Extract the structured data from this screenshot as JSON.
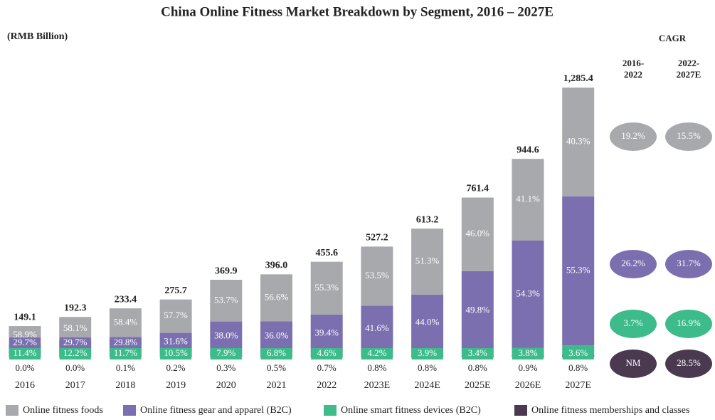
{
  "chart_data": {
    "type": "stacked-bar",
    "title": "China Online Fitness Market Breakdown by Segment, 2016 – 2027E",
    "unit_label": "(RMB Billion)",
    "categories": [
      "2016",
      "2017",
      "2018",
      "2019",
      "2020",
      "2021",
      "2022",
      "2023E",
      "2024E",
      "2025E",
      "2026E",
      "2027E"
    ],
    "totals": {
      "values": [
        149.1,
        192.3,
        233.4,
        275.7,
        369.9,
        396.0,
        455.6,
        527.2,
        613.2,
        761.4,
        944.6,
        1285.4
      ],
      "value_labels": [
        "149.1",
        "192.3",
        "233.4",
        "275.7",
        "369.9",
        "396.0",
        "455.6",
        "527.2",
        "613.2",
        "761.4",
        "944.6",
        "1,285.4"
      ]
    },
    "series": [
      {
        "name": "Online fitness foods",
        "color": "#a7a9ac",
        "values": [
          58.9,
          58.1,
          58.4,
          57.7,
          53.7,
          56.6,
          55.3,
          53.5,
          51.3,
          46.0,
          41.1,
          40.3
        ],
        "value_labels": [
          "58.9%",
          "58.1%",
          "58.4%",
          "57.7%",
          "53.7%",
          "56.6%",
          "55.3%",
          "53.5%",
          "51.3%",
          "46.0%",
          "41.1%",
          "40.3%"
        ]
      },
      {
        "name": "Online fitness gear and apparel (B2C)",
        "color": "#7b6fb0",
        "values": [
          29.7,
          29.7,
          29.8,
          31.6,
          38.0,
          36.0,
          39.4,
          41.6,
          44.0,
          49.8,
          54.3,
          55.3
        ],
        "value_labels": [
          "29.7%",
          "29.7%",
          "29.8%",
          "31.6%",
          "38.0%",
          "36.0%",
          "39.4%",
          "41.6%",
          "44.0%",
          "49.8%",
          "54.3%",
          "55.3%"
        ]
      },
      {
        "name": "Online smart fitness devices (B2C)",
        "color": "#3dbb8a",
        "values": [
          11.4,
          12.2,
          11.7,
          10.5,
          7.9,
          6.8,
          4.6,
          4.2,
          3.9,
          3.4,
          3.8,
          3.6
        ],
        "value_labels": [
          "11.4%",
          "12.2%",
          "11.7%",
          "10.5%",
          "7.9%",
          "6.8%",
          "4.6%",
          "4.2%",
          "3.9%",
          "3.4%",
          "3.8%",
          "3.6%"
        ]
      },
      {
        "name": "Online fitness memberships and classes",
        "color": "#4b3a4f",
        "values": [
          0.0,
          0.0,
          0.1,
          0.2,
          0.3,
          0.5,
          0.7,
          0.8,
          0.8,
          0.8,
          0.9,
          0.8
        ],
        "value_labels": [
          "0.0%",
          "0.0%",
          "0.1%",
          "0.2%",
          "0.3%",
          "0.5%",
          "0.7%",
          "0.8%",
          "0.8%",
          "0.8%",
          "0.9%",
          "0.8%"
        ]
      }
    ],
    "cagr": {
      "title": "CAGR",
      "columns": [
        [
          "2016-",
          "2022"
        ],
        [
          "2022-",
          "2027E"
        ]
      ],
      "rows": [
        [
          "19.2%",
          "15.5%"
        ],
        [
          "26.2%",
          "31.7%"
        ],
        [
          "3.7%",
          "16.9%"
        ],
        [
          "NM",
          "28.5%"
        ]
      ]
    }
  }
}
